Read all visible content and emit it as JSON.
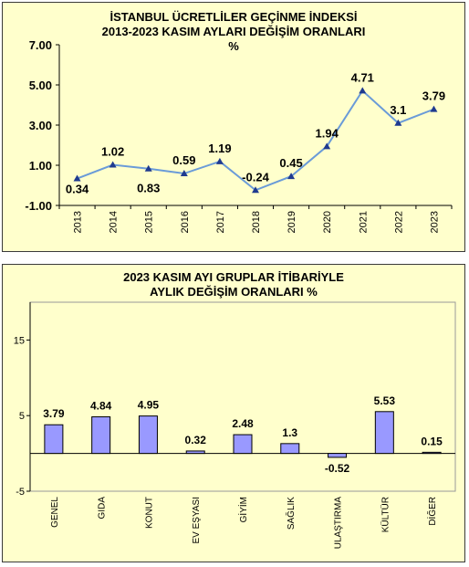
{
  "chart_data": [
    {
      "type": "line",
      "title_lines": [
        "İSTANBUL ÜCRETLİLER GEÇİNME İNDEKSİ",
        "2013-2023 KASIM AYLARI DEĞİŞİM ORANLARI",
        "%"
      ],
      "categories": [
        "2013",
        "2014",
        "2015",
        "2016",
        "2017",
        "2018",
        "2019",
        "2020",
        "2021",
        "2022",
        "2023"
      ],
      "values": [
        0.34,
        1.02,
        0.83,
        0.59,
        1.19,
        -0.24,
        0.45,
        1.94,
        4.71,
        3.1,
        3.79
      ],
      "data_labels": [
        "0.34",
        "1.02",
        "0.83",
        "0.59",
        "1.19",
        "-0.24",
        "0.45",
        "1.94",
        "4.71",
        "3.1",
        "3.79"
      ],
      "ylim": [
        -1,
        7
      ],
      "yticks": [
        "7.00",
        "5.00",
        "3.00",
        "1.00",
        "-1.00"
      ],
      "ytick_values": [
        7,
        5,
        3,
        1,
        -1
      ],
      "line_color": "#6a9bd8",
      "grid": false
    },
    {
      "type": "bar",
      "title_lines": [
        "2023 KASIM  AYI  GRUPLAR İTİBARİYLE",
        "AYLIK DEĞİŞİM  ORANLARI  %"
      ],
      "categories": [
        "GENEL",
        "GIDA",
        "KONUT",
        "EV EŞYASI",
        "GİYİM",
        "SAĞLIK",
        "ULAŞTIRMA",
        "KÜLTÜR",
        "DİĞER"
      ],
      "values": [
        3.79,
        4.84,
        4.95,
        0.32,
        2.48,
        1.3,
        -0.52,
        5.53,
        0.15
      ],
      "data_labels": [
        "3.79",
        "4.84",
        "4.95",
        "0.32",
        "2.48",
        "1.3",
        "-0.52",
        "5.53",
        "0.15"
      ],
      "ylim": [
        -5,
        20
      ],
      "yticks": [
        "15",
        "5",
        "-5"
      ],
      "ytick_values": [
        15,
        5,
        -5
      ],
      "bar_color": "#9999ff",
      "plot_background": "#ffffcc",
      "grid": false
    }
  ]
}
